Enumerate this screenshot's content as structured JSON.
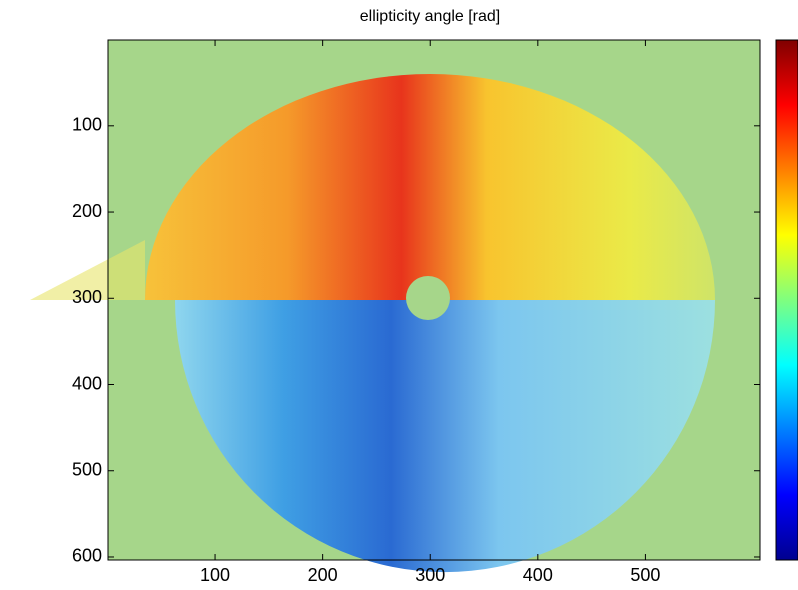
{
  "chart_data": {
    "type": "image",
    "title": "ellipticity angle [rad]",
    "xlim": [
      0.5,
      606.5
    ],
    "xticks": [
      100,
      200,
      300,
      400,
      500
    ],
    "ylim": [
      0.5,
      603.5
    ],
    "yticks": [
      100,
      200,
      300,
      400,
      500,
      600
    ],
    "y_reversed": true,
    "colormap": "jet",
    "colorbar": true
  }
}
